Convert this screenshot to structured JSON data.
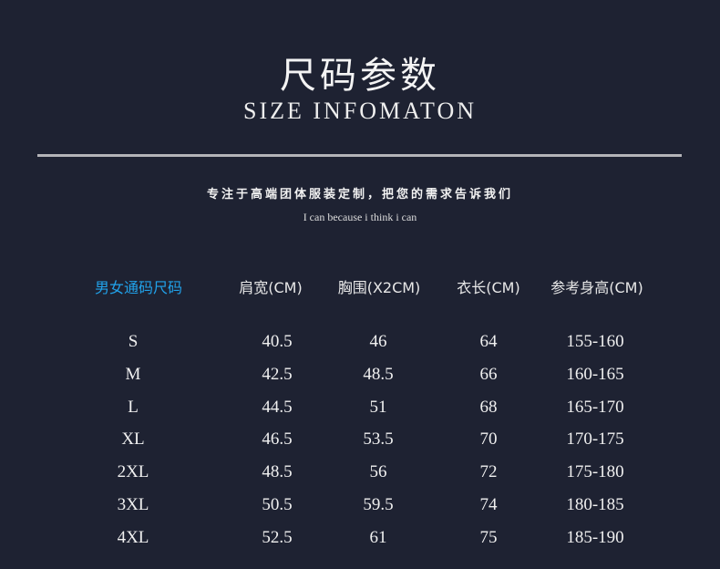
{
  "title": "尺码参数",
  "subtitle": "SIZE INFOMATON",
  "slogan": "专注于高端团体服装定制，把您的需求告诉我们",
  "motto": "I can because i think i can",
  "colors": {
    "background": "#1e2232",
    "accent": "#21a2ea",
    "rule": "#b4b4b8"
  },
  "table": {
    "headers": [
      "男女通码尺码",
      "肩宽(CM)",
      "胸围(X2CM)",
      "衣长(CM)",
      "参考身高(CM)"
    ],
    "rows": [
      [
        "S",
        "40.5",
        "46",
        "64",
        "155-160"
      ],
      [
        "M",
        "42.5",
        "48.5",
        "66",
        "160-165"
      ],
      [
        "L",
        "44.5",
        "51",
        "68",
        "165-170"
      ],
      [
        "XL",
        "46.5",
        "53.5",
        "70",
        "170-175"
      ],
      [
        "2XL",
        "48.5",
        "56",
        "72",
        "175-180"
      ],
      [
        "3XL",
        "50.5",
        "59.5",
        "74",
        "180-185"
      ],
      [
        "4XL",
        "52.5",
        "61",
        "75",
        "185-190"
      ]
    ]
  }
}
